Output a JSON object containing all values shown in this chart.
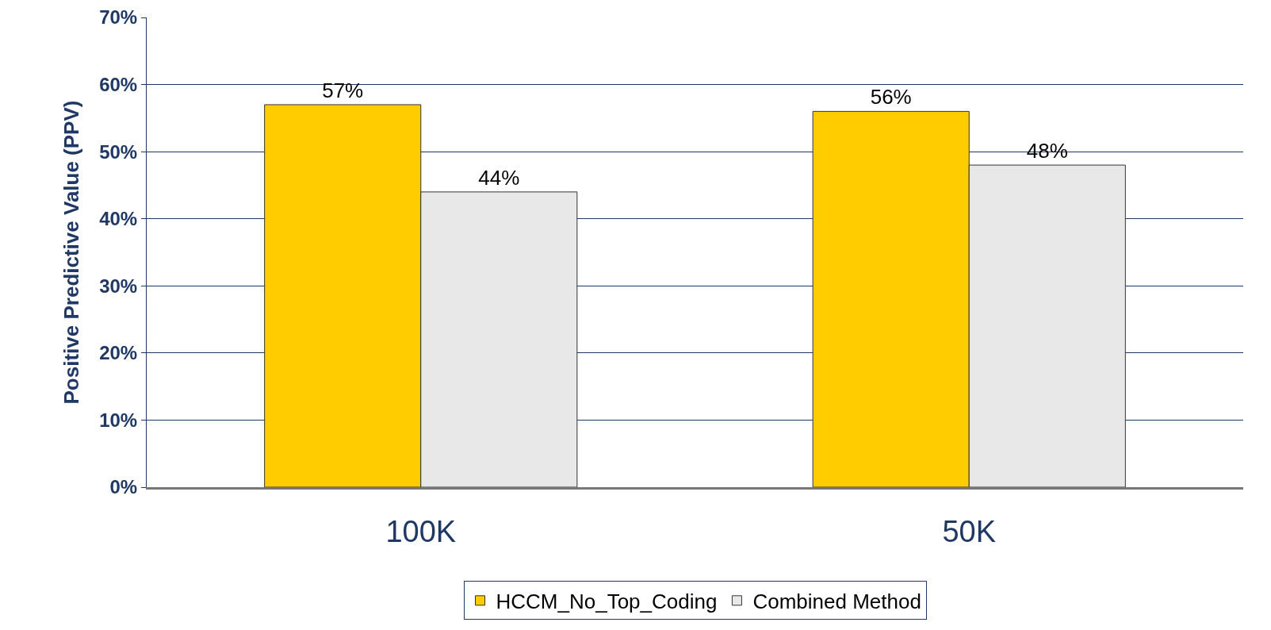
{
  "chart_data": {
    "type": "bar",
    "ylabel": "Positive Predictive Value (PPV)",
    "categories": [
      "100K",
      "50K"
    ],
    "series": [
      {
        "name": "HCCM_No_Top_Coding",
        "color": "#ffcc00",
        "values": [
          57,
          56
        ],
        "value_labels": [
          "57%",
          "56%"
        ]
      },
      {
        "name": "Combined Method",
        "color": "#e8e8e8",
        "values": [
          44,
          48
        ],
        "value_labels": [
          "44%",
          "48%"
        ]
      }
    ],
    "ylim": [
      0,
      70
    ],
    "yticks": [
      {
        "value": 0,
        "label": "0%"
      },
      {
        "value": 10,
        "label": "10%"
      },
      {
        "value": 20,
        "label": "20%"
      },
      {
        "value": 30,
        "label": "30%"
      },
      {
        "value": 40,
        "label": "40%"
      },
      {
        "value": 50,
        "label": "50%"
      },
      {
        "value": 60,
        "label": "60%"
      },
      {
        "value": 70,
        "label": "70%"
      }
    ],
    "grid": "y",
    "legend": "bottom"
  }
}
